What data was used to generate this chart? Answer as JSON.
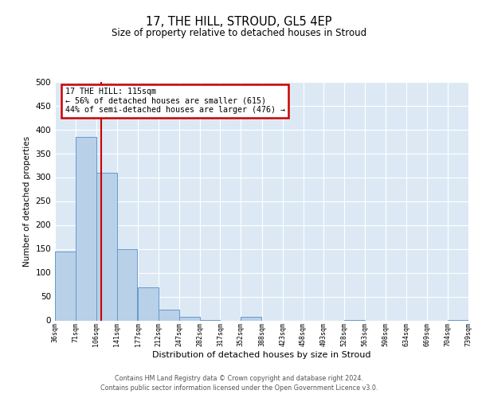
{
  "title": "17, THE HILL, STROUD, GL5 4EP",
  "subtitle": "Size of property relative to detached houses in Stroud",
  "xlabel": "Distribution of detached houses by size in Stroud",
  "ylabel": "Number of detached properties",
  "bin_edges": [
    36,
    71,
    106,
    141,
    177,
    212,
    247,
    282,
    317,
    352,
    388,
    423,
    458,
    493,
    528,
    563,
    598,
    634,
    669,
    704,
    739
  ],
  "bin_counts": [
    144,
    384,
    309,
    149,
    70,
    22,
    7,
    1,
    0,
    8,
    0,
    0,
    0,
    0,
    1,
    0,
    0,
    0,
    0,
    1
  ],
  "bar_color": "#b8d0e8",
  "bar_edge_color": "#6699cc",
  "property_size": 115,
  "vline_color": "#cc0000",
  "ylim": [
    0,
    500
  ],
  "annotation_box_text": "17 THE HILL: 115sqm\n← 56% of detached houses are smaller (615)\n44% of semi-detached houses are larger (476) →",
  "annotation_box_color": "#cc0000",
  "footer_line1": "Contains HM Land Registry data © Crown copyright and database right 2024.",
  "footer_line2": "Contains public sector information licensed under the Open Government Licence v3.0.",
  "tick_labels": [
    "36sqm",
    "71sqm",
    "106sqm",
    "141sqm",
    "177sqm",
    "212sqm",
    "247sqm",
    "282sqm",
    "317sqm",
    "352sqm",
    "388sqm",
    "423sqm",
    "458sqm",
    "493sqm",
    "528sqm",
    "563sqm",
    "598sqm",
    "634sqm",
    "669sqm",
    "704sqm",
    "739sqm"
  ],
  "fig_bg_color": "#ffffff",
  "plot_bg_color": "#dce9f5",
  "grid_color": "#ffffff",
  "yticks": [
    0,
    50,
    100,
    150,
    200,
    250,
    300,
    350,
    400,
    450,
    500
  ]
}
